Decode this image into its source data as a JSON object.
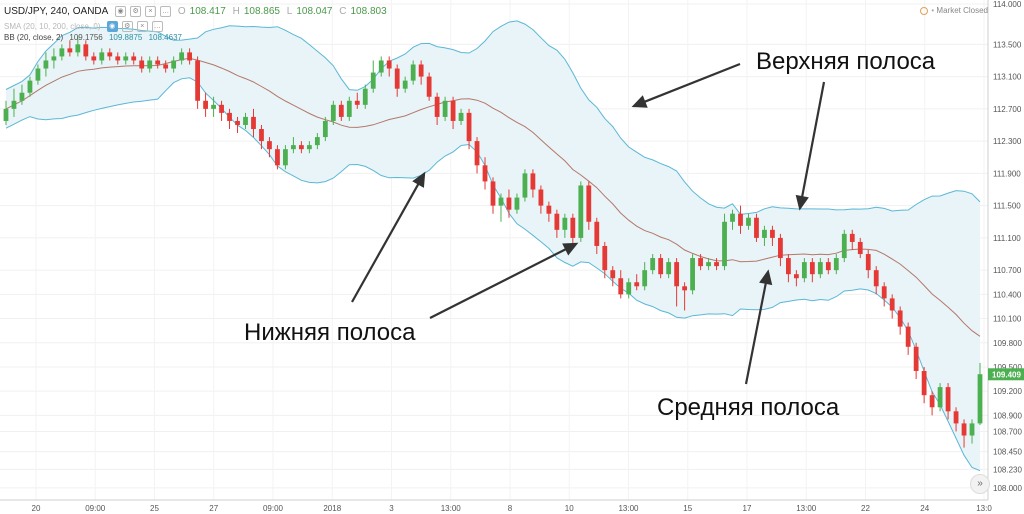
{
  "header": {
    "symbol": "USD/JPY, 240, OANDA",
    "ohlc": [
      {
        "key": "O",
        "value": "108.417"
      },
      {
        "key": "H",
        "value": "108.865"
      },
      {
        "key": "L",
        "value": "108.047"
      },
      {
        "key": "C",
        "value": "108.803"
      }
    ],
    "sma_label": "SMA (20, 10, 200, close, 0)",
    "bb_label": "BB (20, close, 2)",
    "bb_values": [
      "109.1756",
      "109.8875",
      "108.4637"
    ],
    "market_status": "Market Closed"
  },
  "annotations": {
    "upper": "Верхняя полоса",
    "lower": "Нижняя полоса",
    "middle": "Средняя полоса"
  },
  "colors": {
    "up": "#4caf50",
    "down": "#e53935",
    "band": "#5bb7d6",
    "band_fill": "#e8f4f7",
    "middle": "#b4786a",
    "current_price_bg": "#4caf50"
  },
  "icons": [
    "eye-icon",
    "settings-icon",
    "close-icon",
    "more-icon",
    "scroll-right-icon",
    "clock-icon"
  ],
  "chart_data": {
    "type": "candlestick",
    "instrument": "USD/JPY",
    "timeframe": "240",
    "source": "OANDA",
    "ylim": [
      107.9,
      114.0
    ],
    "y_ticks": [
      "114.000",
      "113.500",
      "113.100",
      "112.700",
      "112.300",
      "111.900",
      "111.500",
      "111.100",
      "110.700",
      "110.400",
      "110.100",
      "109.800",
      "109.500",
      "109.200",
      "108.900",
      "108.700",
      "108.450",
      "108.230",
      "108.000"
    ],
    "current_price": "109.409",
    "x_ticks": [
      "20",
      "09:00",
      "25",
      "27",
      "09:00",
      "2018",
      "3",
      "13:00",
      "8",
      "10",
      "13:00",
      "15",
      "17",
      "13:00",
      "22",
      "24",
      "13:0"
    ],
    "candles": [
      [
        112.55,
        112.7,
        112.5,
        112.8
      ],
      [
        112.7,
        112.8,
        112.6,
        112.95
      ],
      [
        112.8,
        112.9,
        112.75,
        113.0
      ],
      [
        112.9,
        113.05,
        112.85,
        113.1
      ],
      [
        113.05,
        113.2,
        113.0,
        113.25
      ],
      [
        113.2,
        113.3,
        113.1,
        113.4
      ],
      [
        113.3,
        113.35,
        113.2,
        113.45
      ],
      [
        113.35,
        113.45,
        113.3,
        113.5
      ],
      [
        113.45,
        113.4,
        113.35,
        113.55
      ],
      [
        113.4,
        113.5,
        113.35,
        113.6
      ],
      [
        113.5,
        113.35,
        113.3,
        113.55
      ],
      [
        113.35,
        113.3,
        113.25,
        113.4
      ],
      [
        113.3,
        113.4,
        113.25,
        113.45
      ],
      [
        113.4,
        113.35,
        113.3,
        113.45
      ],
      [
        113.35,
        113.3,
        113.25,
        113.4
      ],
      [
        113.3,
        113.35,
        113.25,
        113.4
      ],
      [
        113.35,
        113.3,
        113.25,
        113.4
      ],
      [
        113.3,
        113.2,
        113.15,
        113.35
      ],
      [
        113.2,
        113.3,
        113.15,
        113.35
      ],
      [
        113.3,
        113.25,
        113.2,
        113.35
      ],
      [
        113.25,
        113.2,
        113.15,
        113.3
      ],
      [
        113.2,
        113.3,
        113.15,
        113.35
      ],
      [
        113.3,
        113.4,
        113.25,
        113.45
      ],
      [
        113.4,
        113.3,
        113.25,
        113.45
      ],
      [
        113.3,
        112.8,
        112.7,
        113.35
      ],
      [
        112.8,
        112.7,
        112.6,
        112.9
      ],
      [
        112.7,
        112.75,
        112.6,
        112.85
      ],
      [
        112.75,
        112.65,
        112.55,
        112.8
      ],
      [
        112.65,
        112.55,
        112.45,
        112.7
      ],
      [
        112.55,
        112.5,
        112.4,
        112.6
      ],
      [
        112.5,
        112.6,
        112.45,
        112.65
      ],
      [
        112.6,
        112.45,
        112.35,
        112.7
      ],
      [
        112.45,
        112.3,
        112.2,
        112.5
      ],
      [
        112.3,
        112.2,
        112.1,
        112.35
      ],
      [
        112.2,
        112.0,
        111.95,
        112.25
      ],
      [
        112.0,
        112.2,
        111.95,
        112.25
      ],
      [
        112.2,
        112.25,
        112.15,
        112.35
      ],
      [
        112.25,
        112.2,
        112.15,
        112.3
      ],
      [
        112.2,
        112.25,
        112.15,
        112.3
      ],
      [
        112.25,
        112.35,
        112.2,
        112.4
      ],
      [
        112.35,
        112.55,
        112.3,
        112.6
      ],
      [
        112.55,
        112.75,
        112.5,
        112.8
      ],
      [
        112.75,
        112.6,
        112.55,
        112.8
      ],
      [
        112.6,
        112.8,
        112.55,
        112.85
      ],
      [
        112.8,
        112.75,
        112.7,
        112.9
      ],
      [
        112.75,
        112.95,
        112.7,
        113.0
      ],
      [
        112.95,
        113.15,
        112.9,
        113.3
      ],
      [
        113.15,
        113.3,
        113.1,
        113.35
      ],
      [
        113.3,
        113.2,
        113.1,
        113.35
      ],
      [
        113.2,
        112.95,
        112.85,
        113.25
      ],
      [
        112.95,
        113.05,
        112.9,
        113.1
      ],
      [
        113.05,
        113.25,
        113.0,
        113.3
      ],
      [
        113.25,
        113.1,
        113.0,
        113.3
      ],
      [
        113.1,
        112.85,
        112.8,
        113.15
      ],
      [
        112.85,
        112.6,
        112.5,
        112.9
      ],
      [
        112.6,
        112.8,
        112.55,
        112.85
      ],
      [
        112.8,
        112.55,
        112.45,
        112.85
      ],
      [
        112.55,
        112.65,
        112.5,
        112.7
      ],
      [
        112.65,
        112.3,
        112.2,
        112.7
      ],
      [
        112.3,
        112.0,
        111.9,
        112.35
      ],
      [
        112.0,
        111.8,
        111.7,
        112.1
      ],
      [
        111.8,
        111.5,
        111.4,
        111.85
      ],
      [
        111.5,
        111.6,
        111.3,
        111.65
      ],
      [
        111.6,
        111.45,
        111.35,
        111.7
      ],
      [
        111.45,
        111.6,
        111.4,
        111.65
      ],
      [
        111.6,
        111.9,
        111.55,
        111.95
      ],
      [
        111.9,
        111.7,
        111.6,
        111.95
      ],
      [
        111.7,
        111.5,
        111.4,
        111.75
      ],
      [
        111.5,
        111.4,
        111.3,
        111.55
      ],
      [
        111.4,
        111.2,
        111.1,
        111.45
      ],
      [
        111.2,
        111.35,
        111.1,
        111.4
      ],
      [
        111.35,
        111.1,
        111.0,
        111.4
      ],
      [
        111.1,
        111.75,
        111.05,
        111.8
      ],
      [
        111.75,
        111.3,
        111.2,
        111.8
      ],
      [
        111.3,
        111.0,
        110.9,
        111.35
      ],
      [
        111.0,
        110.7,
        110.6,
        111.05
      ],
      [
        110.7,
        110.6,
        110.5,
        110.75
      ],
      [
        110.6,
        110.4,
        110.35,
        110.7
      ],
      [
        110.4,
        110.55,
        110.35,
        110.6
      ],
      [
        110.55,
        110.5,
        110.45,
        110.65
      ],
      [
        110.5,
        110.7,
        110.45,
        110.8
      ],
      [
        110.7,
        110.85,
        110.65,
        110.9
      ],
      [
        110.85,
        110.65,
        110.6,
        110.9
      ],
      [
        110.65,
        110.8,
        110.6,
        110.85
      ],
      [
        110.8,
        110.5,
        110.25,
        110.85
      ],
      [
        110.5,
        110.45,
        110.2,
        110.55
      ],
      [
        110.45,
        110.85,
        110.4,
        110.9
      ],
      [
        110.85,
        110.75,
        110.7,
        110.9
      ],
      [
        110.75,
        110.8,
        110.7,
        110.85
      ],
      [
        110.8,
        110.75,
        110.7,
        110.85
      ],
      [
        110.75,
        111.3,
        110.7,
        111.4
      ],
      [
        111.3,
        111.4,
        111.2,
        111.45
      ],
      [
        111.4,
        111.25,
        111.15,
        111.5
      ],
      [
        111.25,
        111.35,
        111.2,
        111.4
      ],
      [
        111.35,
        111.1,
        111.05,
        111.4
      ],
      [
        111.1,
        111.2,
        111.0,
        111.25
      ],
      [
        111.2,
        111.1,
        111.0,
        111.25
      ],
      [
        111.1,
        110.85,
        110.75,
        111.15
      ],
      [
        110.85,
        110.65,
        110.55,
        110.9
      ],
      [
        110.65,
        110.6,
        110.5,
        110.7
      ],
      [
        110.6,
        110.8,
        110.55,
        110.85
      ],
      [
        110.8,
        110.65,
        110.55,
        110.85
      ],
      [
        110.65,
        110.8,
        110.6,
        110.85
      ],
      [
        110.8,
        110.7,
        110.65,
        110.85
      ],
      [
        110.7,
        110.85,
        110.65,
        110.9
      ],
      [
        110.85,
        111.15,
        110.8,
        111.2
      ],
      [
        111.15,
        111.05,
        110.95,
        111.2
      ],
      [
        111.05,
        110.9,
        110.85,
        111.1
      ],
      [
        110.9,
        110.7,
        110.6,
        110.95
      ],
      [
        110.7,
        110.5,
        110.4,
        110.75
      ],
      [
        110.5,
        110.35,
        110.25,
        110.55
      ],
      [
        110.35,
        110.2,
        110.1,
        110.4
      ],
      [
        110.2,
        110.0,
        109.9,
        110.25
      ],
      [
        110.0,
        109.75,
        109.65,
        110.05
      ],
      [
        109.75,
        109.45,
        109.35,
        109.8
      ],
      [
        109.45,
        109.15,
        109.05,
        109.5
      ],
      [
        109.15,
        109.0,
        108.9,
        109.2
      ],
      [
        109.0,
        109.25,
        108.95,
        109.3
      ],
      [
        109.25,
        108.95,
        108.85,
        109.3
      ],
      [
        108.95,
        108.8,
        108.7,
        109.0
      ],
      [
        108.8,
        108.65,
        108.5,
        108.85
      ],
      [
        108.65,
        108.8,
        108.55,
        108.85
      ],
      [
        108.8,
        109.41,
        108.78,
        109.55
      ]
    ]
  }
}
